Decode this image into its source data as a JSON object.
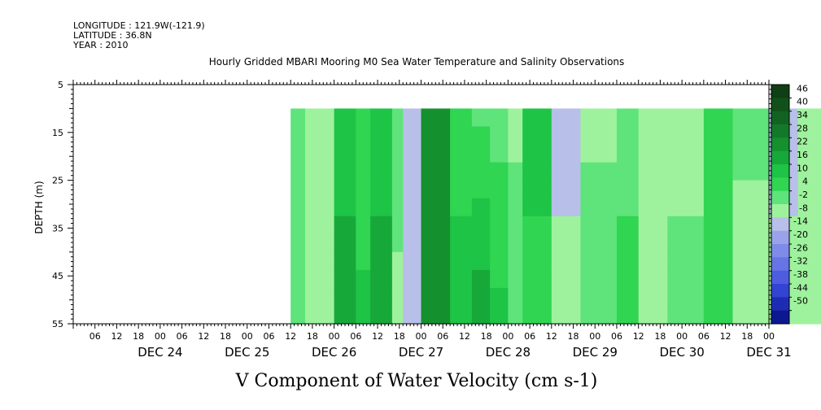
{
  "header": {
    "longitude": "LONGITUDE : 121.9W(-121.9)",
    "latitude": "LATITUDE : 36.8N",
    "year": "YEAR : 2010"
  },
  "chart_data": {
    "type": "heatmap",
    "title": "Hourly Gridded MBARI Mooring M0 Sea Water Temperature and Salinity Observations",
    "xlabel": "V Component of Water Velocity (cm s-1)",
    "ylabel": "DEPTH (m)",
    "ylim": [
      5,
      55
    ],
    "y_reversed": true,
    "y_ticks": [
      5,
      15,
      25,
      35,
      45,
      55
    ],
    "data_depth_range": [
      10,
      55
    ],
    "x_range_hours": [
      -24,
      168
    ],
    "x_data_start_hour": 36,
    "x_hour_ticks": [
      "06",
      "12",
      "18",
      "00",
      "06",
      "12",
      "18",
      "00",
      "06",
      "12",
      "18",
      "00",
      "06",
      "12",
      "18",
      "00",
      "06",
      "12",
      "18",
      "00",
      "06",
      "12",
      "18",
      "00",
      "06",
      "12",
      "18",
      "00",
      "06",
      "12",
      "18",
      "00"
    ],
    "x_day_labels": [
      "DEC 24",
      "DEC 25",
      "DEC 26",
      "DEC 27",
      "DEC 28",
      "DEC 29",
      "DEC 30",
      "DEC 31"
    ],
    "colorbar": {
      "levels": [
        46,
        40,
        34,
        28,
        22,
        16,
        10,
        4,
        -2,
        -8,
        -14,
        -20,
        -26,
        -32,
        -38,
        -44,
        -50
      ],
      "colors": [
        "#0f3f14",
        "#11501a",
        "#126322",
        "#14782a",
        "#15902f",
        "#17a83a",
        "#1ec445",
        "#30d552",
        "#5ee47a",
        "#9ff29d",
        "#b8bfe8",
        "#9aa3ea",
        "#7f8be8",
        "#6674e6",
        "#4e5ce0",
        "#3344d2",
        "#1e2cb4",
        "#0d1890"
      ]
    },
    "bands": [
      {
        "start": 36,
        "end": 40,
        "top": 3,
        "bottom": 1
      },
      {
        "start": 40,
        "end": 48,
        "top": -4,
        "bottom": -6
      },
      {
        "start": 48,
        "end": 54,
        "top": 14,
        "bottom": 18
      },
      {
        "start": 54,
        "end": 58,
        "top": 4,
        "bottom": 12
      },
      {
        "start": 58,
        "end": 64,
        "top": 12,
        "bottom": 20
      },
      {
        "start": 64,
        "end": 67,
        "top": 2,
        "bottom": -4
      },
      {
        "start": 67,
        "end": 72,
        "top": -8,
        "bottom": -10
      },
      {
        "start": 72,
        "end": 80,
        "top": 22,
        "bottom": 24
      },
      {
        "start": 80,
        "end": 86,
        "top": 6,
        "bottom": 14
      },
      {
        "start": 86,
        "end": 91,
        "top": 2,
        "bottom": 20
      },
      {
        "start": 91,
        "end": 96,
        "top": 1,
        "bottom": 12
      },
      {
        "start": 96,
        "end": 100,
        "top": -4,
        "bottom": 3
      },
      {
        "start": 100,
        "end": 108,
        "top": 12,
        "bottom": 8
      },
      {
        "start": 108,
        "end": 116,
        "top": -10,
        "bottom": -6
      },
      {
        "start": 116,
        "end": 126,
        "top": -4,
        "bottom": 3
      },
      {
        "start": 126,
        "end": 132,
        "top": 3,
        "bottom": 5
      },
      {
        "start": 132,
        "end": 140,
        "top": -6,
        "bottom": -4
      },
      {
        "start": 140,
        "end": 150,
        "top": -6,
        "bottom": 2
      },
      {
        "start": 150,
        "end": 158,
        "top": 4,
        "bottom": 6
      },
      {
        "start": 158,
        "end": 168,
        "top": 1,
        "bottom": -8
      },
      {
        "start": 168,
        "end": 176,
        "top": -10,
        "bottom": -6
      },
      {
        "start": 176,
        "end": 186,
        "top": -4,
        "bottom": -6
      },
      {
        "start": 186,
        "end": 196,
        "top": 3,
        "bottom": 6
      },
      {
        "start": 196,
        "end": 204,
        "top": -16,
        "bottom": -18
      },
      {
        "start": 204,
        "end": 212,
        "top": -6,
        "bottom": 2
      },
      {
        "start": 212,
        "end": 220,
        "top": -20,
        "bottom": -16
      },
      {
        "start": 220,
        "end": 226,
        "top": -10,
        "bottom": -8
      },
      {
        "start": 226,
        "end": 232,
        "top": -6,
        "bottom": -20
      },
      {
        "start": 232,
        "end": 240,
        "top": 8,
        "bottom": 2
      },
      {
        "start": 240,
        "end": 244,
        "top": -10,
        "bottom": -16
      }
    ]
  }
}
